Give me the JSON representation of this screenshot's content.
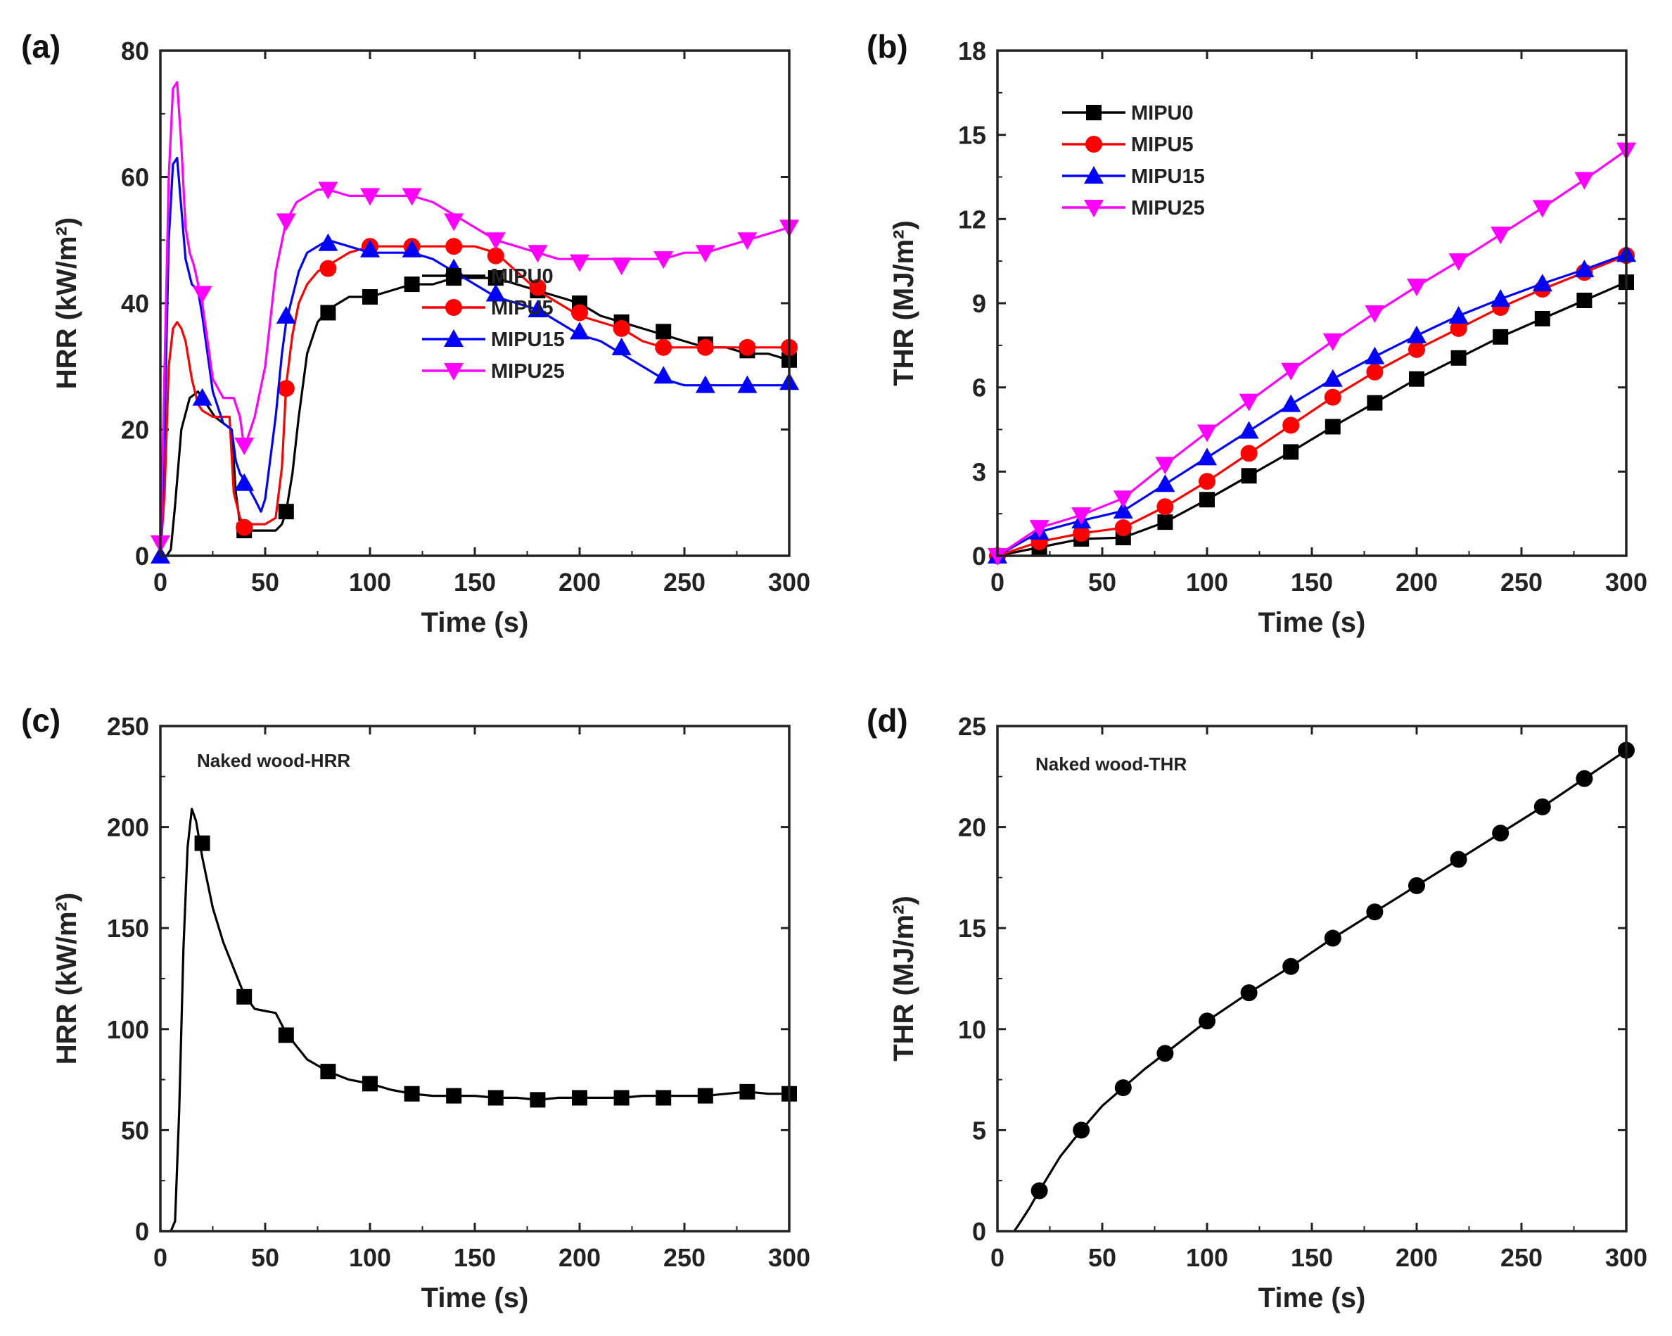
{
  "chart_data": [
    {
      "panel": "(a)",
      "type": "line",
      "ylabel": "HRR (kW/m²)",
      "xlabel": "Time (s)",
      "xlim": [
        0,
        300
      ],
      "ylim": [
        0,
        80
      ],
      "xticks": [
        "0",
        "50",
        "100",
        "150",
        "200",
        "250",
        "300"
      ],
      "yticks": [
        "0",
        "20",
        "40",
        "60",
        "80"
      ],
      "legend": "center-right",
      "series": [
        {
          "name": "MIPU0",
          "color": "#000000",
          "marker": "square",
          "x": [
            0,
            3,
            5,
            7,
            10,
            14,
            18,
            22,
            26,
            30,
            34,
            36,
            38,
            40,
            45,
            50,
            55,
            58,
            60,
            63,
            66,
            70,
            75,
            80,
            90,
            100,
            110,
            120,
            130,
            140,
            150,
            160,
            170,
            180,
            190,
            200,
            210,
            220,
            230,
            240,
            250,
            260,
            270,
            280,
            290,
            300
          ],
          "y": [
            0,
            0,
            1,
            8,
            20,
            25,
            26,
            24,
            22,
            21,
            20,
            10,
            5,
            4,
            4,
            4,
            4,
            5,
            7,
            13,
            22,
            32,
            37,
            39,
            41,
            41,
            42,
            43,
            43,
            44,
            44,
            44,
            43,
            42,
            41,
            40,
            38,
            37,
            36,
            35,
            34,
            33,
            33,
            32,
            32,
            31
          ],
          "mx": [
            40,
            60,
            80,
            100,
            120,
            140,
            160,
            180,
            200,
            220,
            240,
            260,
            280,
            300
          ],
          "my": [
            4,
            7,
            38.5,
            41,
            43,
            44,
            44,
            42,
            40,
            37,
            35.5,
            33.5,
            32.5,
            31
          ]
        },
        {
          "name": "MIPU5",
          "color": "#ff0000",
          "marker": "circle",
          "x": [
            0,
            2,
            4,
            6,
            8,
            10,
            12,
            15,
            18,
            20,
            25,
            30,
            33,
            35,
            38,
            40,
            45,
            50,
            55,
            58,
            60,
            63,
            66,
            70,
            75,
            80,
            90,
            100,
            110,
            120,
            130,
            140,
            150,
            160,
            170,
            180,
            190,
            200,
            210,
            220,
            230,
            240,
            250,
            260,
            270,
            280,
            290,
            300
          ],
          "y": [
            0,
            10,
            30,
            36,
            37,
            36,
            34,
            28,
            24,
            23,
            22,
            22,
            22,
            10,
            6,
            5,
            5,
            5,
            6,
            14,
            27,
            35,
            40,
            43,
            45,
            46,
            48,
            49,
            49,
            49,
            49,
            49,
            49,
            48,
            45,
            42,
            40,
            38,
            37,
            36,
            34,
            33,
            33,
            33,
            33,
            33,
            33,
            33
          ],
          "mx": [
            40,
            60,
            80,
            100,
            120,
            140,
            160,
            180,
            200,
            220,
            240,
            260,
            280,
            300
          ],
          "my": [
            4.5,
            26.5,
            45.5,
            49,
            49,
            49,
            47.5,
            42.5,
            38.5,
            36,
            33,
            33,
            33,
            33
          ]
        },
        {
          "name": "MIPU15",
          "color": "#0000ff",
          "marker": "triangle-up",
          "x": [
            0,
            2,
            4,
            6,
            8,
            10,
            12,
            15,
            18,
            20,
            25,
            30,
            34,
            36,
            38,
            40,
            45,
            48,
            50,
            55,
            58,
            60,
            63,
            66,
            70,
            75,
            80,
            90,
            100,
            110,
            120,
            130,
            140,
            150,
            160,
            170,
            180,
            190,
            200,
            210,
            220,
            230,
            240,
            250,
            260,
            270,
            280,
            290,
            300
          ],
          "y": [
            0,
            20,
            50,
            62,
            63,
            55,
            47,
            43,
            42,
            38,
            26,
            21,
            20,
            15,
            13,
            12,
            9,
            7,
            9,
            22,
            32,
            37,
            41,
            45,
            48,
            49,
            50,
            49,
            48,
            48,
            48,
            47,
            45,
            43,
            41,
            40,
            39,
            37,
            35,
            34,
            32,
            30,
            28,
            27,
            27,
            27,
            27,
            27,
            27
          ],
          "mx": [
            0,
            20,
            40,
            60,
            80,
            100,
            120,
            140,
            160,
            180,
            200,
            220,
            240,
            260,
            280,
            300
          ],
          "my": [
            0,
            25,
            11.5,
            38,
            49.5,
            48.5,
            48.5,
            45.5,
            41.5,
            39,
            35.5,
            33,
            28.5,
            27,
            27,
            27.5
          ]
        },
        {
          "name": "MIPU25",
          "color": "#ff00ff",
          "marker": "triangle-down",
          "x": [
            0,
            2,
            4,
            6,
            8,
            10,
            12,
            14,
            16,
            20,
            25,
            30,
            35,
            38,
            40,
            45,
            50,
            55,
            60,
            65,
            70,
            75,
            80,
            90,
            100,
            110,
            120,
            130,
            140,
            150,
            160,
            170,
            180,
            190,
            200,
            210,
            220,
            230,
            240,
            250,
            260,
            270,
            280,
            290,
            300
          ],
          "y": [
            0,
            30,
            60,
            74,
            75,
            65,
            52,
            48,
            46,
            40,
            28,
            25,
            25,
            22,
            17,
            22,
            30,
            45,
            53,
            56,
            57,
            58,
            58,
            57,
            57,
            57,
            57,
            56,
            54,
            52,
            50,
            49,
            48,
            47,
            47,
            47,
            47,
            47,
            47,
            48,
            48,
            49,
            50,
            51,
            52
          ],
          "mx": [
            0,
            20,
            40,
            60,
            80,
            100,
            120,
            140,
            160,
            180,
            200,
            220,
            240,
            260,
            280,
            300
          ],
          "my": [
            2,
            41.5,
            17.5,
            53,
            58,
            57,
            57,
            53,
            50,
            48,
            46.5,
            46,
            47,
            48,
            50,
            52
          ]
        }
      ]
    },
    {
      "panel": "(b)",
      "type": "line",
      "ylabel": "THR (MJ/m²)",
      "xlabel": "Time (s)",
      "xlim": [
        0,
        300
      ],
      "ylim": [
        0,
        18
      ],
      "xticks": [
        "0",
        "50",
        "100",
        "150",
        "200",
        "250",
        "300"
      ],
      "yticks": [
        "0",
        "3",
        "6",
        "9",
        "12",
        "15",
        "18"
      ],
      "legend": "top-left",
      "series": [
        {
          "name": "MIPU0",
          "color": "#000000",
          "marker": "square",
          "x": [
            0,
            20,
            40,
            60,
            80,
            100,
            120,
            140,
            160,
            180,
            200,
            220,
            240,
            260,
            280,
            300
          ],
          "y": [
            0,
            0.3,
            0.6,
            0.65,
            1.2,
            2.0,
            2.85,
            3.7,
            4.6,
            5.45,
            6.3,
            7.05,
            7.8,
            8.45,
            9.1,
            9.75
          ],
          "mx": [
            0,
            20,
            40,
            60,
            80,
            100,
            120,
            140,
            160,
            180,
            200,
            220,
            240,
            260,
            280,
            300
          ],
          "my": [
            0,
            0.3,
            0.6,
            0.65,
            1.2,
            2.0,
            2.85,
            3.7,
            4.6,
            5.45,
            6.3,
            7.05,
            7.8,
            8.45,
            9.1,
            9.75
          ]
        },
        {
          "name": "MIPU5",
          "color": "#ff0000",
          "marker": "circle",
          "x": [
            0,
            20,
            40,
            60,
            80,
            100,
            120,
            140,
            160,
            180,
            200,
            220,
            240,
            260,
            280,
            300
          ],
          "y": [
            0,
            0.5,
            0.8,
            1.0,
            1.75,
            2.65,
            3.65,
            4.65,
            5.65,
            6.55,
            7.35,
            8.1,
            8.85,
            9.5,
            10.1,
            10.7
          ],
          "mx": [
            0,
            20,
            40,
            60,
            80,
            100,
            120,
            140,
            160,
            180,
            200,
            220,
            240,
            260,
            280,
            300
          ],
          "my": [
            0,
            0.5,
            0.8,
            1.0,
            1.75,
            2.65,
            3.65,
            4.65,
            5.65,
            6.55,
            7.35,
            8.1,
            8.85,
            9.5,
            10.1,
            10.7
          ]
        },
        {
          "name": "MIPU15",
          "color": "#0000ff",
          "marker": "triangle-up",
          "x": [
            0,
            20,
            40,
            60,
            80,
            100,
            120,
            140,
            160,
            180,
            200,
            220,
            240,
            260,
            280,
            300
          ],
          "y": [
            0,
            0.85,
            1.25,
            1.6,
            2.55,
            3.5,
            4.45,
            5.4,
            6.3,
            7.1,
            7.85,
            8.55,
            9.15,
            9.7,
            10.2,
            10.75
          ],
          "mx": [
            0,
            20,
            40,
            60,
            80,
            100,
            120,
            140,
            160,
            180,
            200,
            220,
            240,
            260,
            280,
            300
          ],
          "my": [
            0,
            0.85,
            1.25,
            1.6,
            2.55,
            3.5,
            4.45,
            5.4,
            6.3,
            7.1,
            7.85,
            8.55,
            9.15,
            9.7,
            10.2,
            10.75
          ]
        },
        {
          "name": "MIPU25",
          "color": "#ff00ff",
          "marker": "triangle-down",
          "x": [
            0,
            20,
            40,
            60,
            80,
            100,
            120,
            140,
            160,
            180,
            200,
            220,
            240,
            260,
            280,
            300
          ],
          "y": [
            0,
            1.0,
            1.45,
            2.05,
            3.25,
            4.4,
            5.5,
            6.6,
            7.65,
            8.65,
            9.6,
            10.5,
            11.45,
            12.4,
            13.4,
            14.45
          ],
          "mx": [
            0,
            20,
            40,
            60,
            80,
            100,
            120,
            140,
            160,
            180,
            200,
            220,
            240,
            260,
            280,
            300
          ],
          "my": [
            0,
            1.0,
            1.45,
            2.05,
            3.25,
            4.4,
            5.5,
            6.6,
            7.65,
            8.65,
            9.6,
            10.5,
            11.45,
            12.4,
            13.4,
            14.45
          ]
        }
      ]
    },
    {
      "panel": "(c)",
      "type": "line",
      "ylabel": "HRR (kW/m²)",
      "xlabel": "Time (s)",
      "xlim": [
        0,
        300
      ],
      "ylim": [
        0,
        250
      ],
      "xticks": [
        "0",
        "50",
        "100",
        "150",
        "200",
        "250",
        "300"
      ],
      "yticks": [
        "0",
        "50",
        "100",
        "150",
        "200",
        "250"
      ],
      "annotation": "Naked wood-HRR",
      "series": [
        {
          "name": "Naked wood-HRR",
          "color": "#000000",
          "marker": "square",
          "x": [
            0,
            5,
            7,
            9,
            11,
            13,
            15,
            17,
            20,
            25,
            30,
            35,
            40,
            45,
            50,
            55,
            60,
            70,
            80,
            90,
            100,
            110,
            120,
            130,
            140,
            150,
            160,
            170,
            180,
            190,
            200,
            210,
            220,
            230,
            240,
            250,
            260,
            270,
            280,
            290,
            300
          ],
          "y": [
            0,
            0,
            5,
            60,
            140,
            190,
            209,
            203,
            185,
            160,
            143,
            130,
            117,
            110,
            109,
            108,
            98,
            85,
            79,
            75,
            73,
            70,
            68,
            67,
            67,
            67,
            66,
            66,
            65,
            66,
            66,
            66,
            66,
            67,
            67,
            67,
            67,
            68,
            69,
            68,
            68
          ],
          "mx": [
            20,
            40,
            60,
            80,
            100,
            120,
            140,
            160,
            180,
            200,
            220,
            240,
            260,
            280,
            300
          ],
          "my": [
            192,
            116,
            97,
            79,
            73,
            68,
            67,
            66,
            65,
            66,
            66,
            66,
            67,
            69,
            68
          ]
        }
      ]
    },
    {
      "panel": "(d)",
      "type": "line",
      "ylabel": "THR (MJ/m²)",
      "xlabel": "Time (s)",
      "xlim": [
        0,
        300
      ],
      "ylim": [
        0,
        25
      ],
      "xticks": [
        "0",
        "50",
        "100",
        "150",
        "200",
        "250",
        "300"
      ],
      "yticks": [
        "0",
        "5",
        "10",
        "15",
        "20",
        "25"
      ],
      "annotation": "Naked wood-THR",
      "series": [
        {
          "name": "Naked wood-THR",
          "color": "#000000",
          "marker": "circle",
          "x": [
            8,
            10,
            15,
            20,
            30,
            40,
            50,
            60,
            70,
            80,
            90,
            100,
            120,
            140,
            160,
            180,
            200,
            220,
            240,
            260,
            280,
            300
          ],
          "y": [
            0,
            0.3,
            1.1,
            2.0,
            3.7,
            5.0,
            6.2,
            7.1,
            8.0,
            8.8,
            9.6,
            10.4,
            11.8,
            13.1,
            14.5,
            15.8,
            17.1,
            18.4,
            19.7,
            21.0,
            22.4,
            23.8
          ],
          "mx": [
            20,
            40,
            60,
            80,
            100,
            120,
            140,
            160,
            180,
            200,
            220,
            240,
            260,
            280,
            300
          ],
          "my": [
            2.0,
            5.0,
            7.1,
            8.8,
            10.4,
            11.8,
            13.1,
            14.5,
            15.8,
            17.1,
            18.4,
            19.7,
            21.0,
            22.4,
            23.8
          ]
        }
      ]
    }
  ]
}
